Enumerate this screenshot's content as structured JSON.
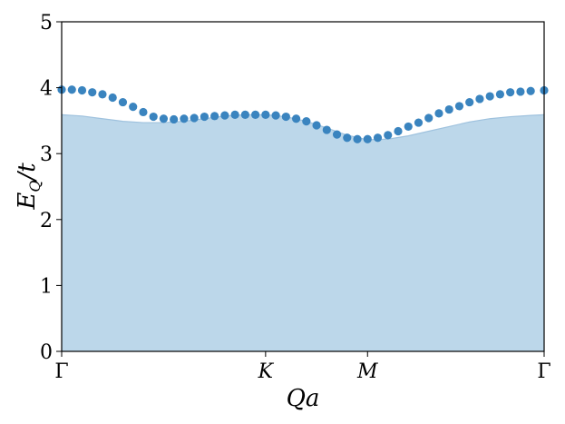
{
  "chart_data": {
    "type": "scatter",
    "xlabel": "Qa",
    "ylabel": {
      "main": "E",
      "sub": "Q",
      "rest": "/t"
    },
    "ylim": [
      0,
      5
    ],
    "yticks": [
      "0",
      "1",
      "2",
      "3",
      "4",
      "5"
    ],
    "xticks": [
      {
        "label": "Γ",
        "pos": 0
      },
      {
        "label": "K",
        "pos": 1
      },
      {
        "label": "M",
        "pos": 1.5
      },
      {
        "label": "Γ",
        "pos": 2.366
      }
    ],
    "grid": false,
    "colors": {
      "points": "#3a84bf",
      "band_fill": "#bcd7ea",
      "band_edge": "#9fc2de"
    },
    "series": [
      {
        "kind": "points",
        "x": [
          0,
          0.05,
          0.1,
          0.15,
          0.2,
          0.25,
          0.3,
          0.35,
          0.4,
          0.45,
          0.5,
          0.55,
          0.6,
          0.65,
          0.7,
          0.75,
          0.8,
          0.85,
          0.9,
          0.95,
          1.0,
          1.05,
          1.1,
          1.15,
          1.2,
          1.25,
          1.3,
          1.35,
          1.4,
          1.45,
          1.5,
          1.55,
          1.6,
          1.65,
          1.7,
          1.75,
          1.8,
          1.85,
          1.9,
          1.95,
          2.0,
          2.05,
          2.1,
          2.15,
          2.2,
          2.25,
          2.3,
          2.366
        ],
        "y": [
          3.97,
          3.97,
          3.96,
          3.93,
          3.9,
          3.85,
          3.78,
          3.71,
          3.63,
          3.56,
          3.53,
          3.52,
          3.53,
          3.54,
          3.56,
          3.57,
          3.58,
          3.59,
          3.59,
          3.59,
          3.59,
          3.58,
          3.56,
          3.53,
          3.49,
          3.43,
          3.36,
          3.29,
          3.24,
          3.22,
          3.22,
          3.24,
          3.28,
          3.34,
          3.41,
          3.47,
          3.54,
          3.61,
          3.67,
          3.72,
          3.78,
          3.83,
          3.87,
          3.9,
          3.93,
          3.94,
          3.95,
          3.96
        ]
      },
      {
        "kind": "band",
        "x": [
          0,
          0.1,
          0.2,
          0.3,
          0.4,
          0.5,
          0.6,
          0.7,
          0.8,
          0.9,
          1.0,
          1.1,
          1.2,
          1.3,
          1.4,
          1.5,
          1.6,
          1.7,
          1.8,
          1.9,
          2.0,
          2.1,
          2.2,
          2.3,
          2.366
        ],
        "y": [
          3.59,
          3.57,
          3.53,
          3.49,
          3.47,
          3.47,
          3.49,
          3.53,
          3.57,
          3.59,
          3.59,
          3.56,
          3.49,
          3.39,
          3.28,
          3.21,
          3.22,
          3.27,
          3.34,
          3.41,
          3.48,
          3.53,
          3.56,
          3.58,
          3.59
        ],
        "ymin": 0
      }
    ]
  }
}
